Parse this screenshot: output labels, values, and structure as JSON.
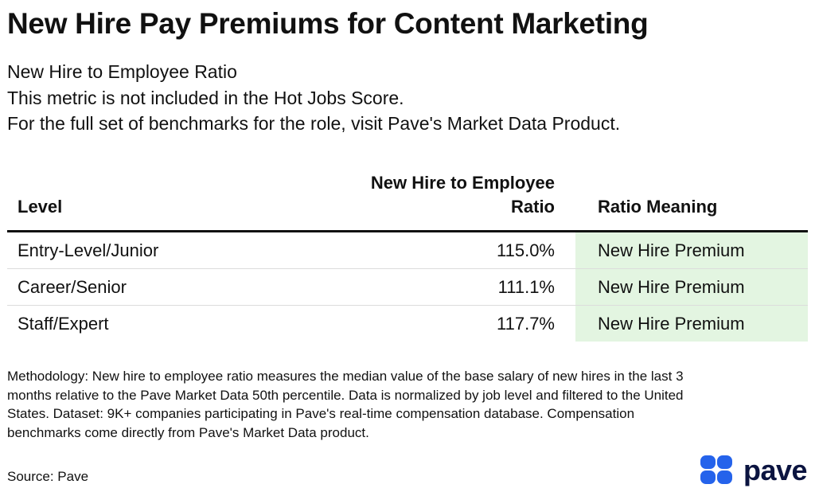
{
  "title": "New Hire Pay Premiums for Content Marketing",
  "subtitle_lines": [
    "New Hire to Employee Ratio",
    "This metric is not included in the Hot Jobs Score.",
    "For the full set of benchmarks for the role, visit Pave's Market Data Product."
  ],
  "table": {
    "headers": {
      "level": "Level",
      "ratio_line1": "New Hire to Employee",
      "ratio_line2": "Ratio",
      "meaning": "Ratio Meaning"
    },
    "rows": [
      {
        "level": "Entry-Level/Junior",
        "ratio": "115.0%",
        "meaning": "New Hire Premium"
      },
      {
        "level": "Career/Senior",
        "ratio": "111.1%",
        "meaning": "New Hire Premium"
      },
      {
        "level": "Staff/Expert",
        "ratio": "117.7%",
        "meaning": "New Hire Premium"
      }
    ],
    "highlight_color": "#e3f5e1"
  },
  "methodology": "Methodology: New hire to employee ratio measures the median value of the base salary of new hires in the last 3 months relative to the Pave Market Data 50th percentile. Data is normalized by job level and filtered to the United States. Dataset: 9K+ companies participating in Pave's real-time compensation database. Compensation benchmarks come directly from Pave's Market Data product.",
  "source": "Source: Pave",
  "logo": {
    "text": "pave",
    "icon": "pave-logo-icon",
    "color": "#2563eb"
  }
}
